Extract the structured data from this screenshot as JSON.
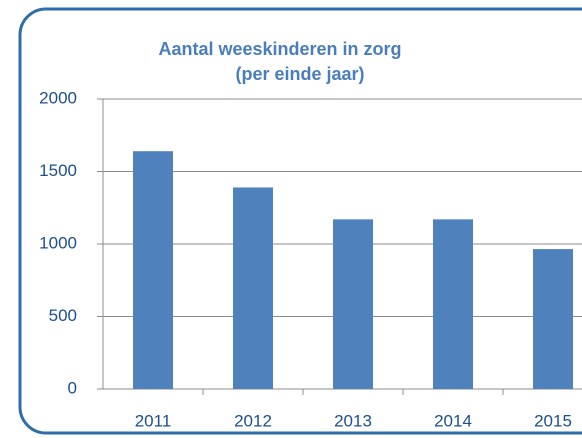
{
  "chart_data": {
    "type": "bar",
    "title": "Aantal weeskinderen in zorg",
    "subtitle": "(per einde jaar)",
    "categories": [
      "2011",
      "2012",
      "2013",
      "2014",
      "2015"
    ],
    "values": [
      1640,
      1390,
      1170,
      1170,
      965
    ],
    "color": "#4f81bd",
    "ylim": [
      0,
      2000
    ],
    "yticks": [
      0,
      500,
      1000,
      1500,
      2000
    ],
    "grid": true
  }
}
